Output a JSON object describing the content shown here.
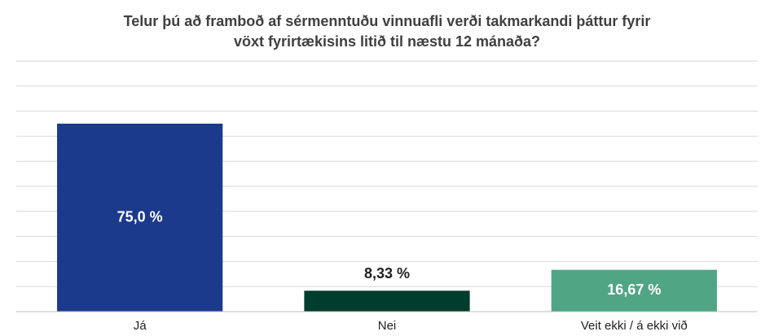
{
  "chart_data": {
    "type": "bar",
    "title": "Telur þú að framboð af sérmenntuðu vinnuafli verði takmarkandi þáttur fyrir vöxt fyrirtækisins litið til næstu 12 mánaða?",
    "categories": [
      "Já",
      "Nei",
      "Veit ekki / á ekki við"
    ],
    "values": [
      75.0,
      8.33,
      16.67
    ],
    "value_labels": [
      "75,0 %",
      "8,33 %",
      "16,67 %"
    ],
    "colors": [
      "#1c3a8c",
      "#003d2c",
      "#4fa584"
    ],
    "ylim": [
      0,
      100
    ],
    "yticks": [
      0,
      10,
      20,
      30,
      40,
      50,
      60,
      70,
      80,
      90,
      100
    ],
    "grid": true
  }
}
